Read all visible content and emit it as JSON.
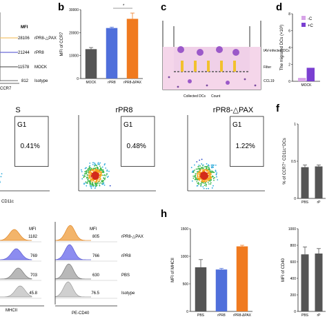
{
  "panel_letters": [
    "b",
    "c",
    "d",
    "f",
    "h"
  ],
  "panel_a": {
    "mfi_label": "MFI",
    "rows": [
      {
        "value": "28106",
        "label": "rPR8-△PAX",
        "color": "#f3c46e"
      },
      {
        "value": "21244",
        "label": "rPR8",
        "color": "#6b6bd8"
      },
      {
        "value": "11578",
        "label": "MOCK",
        "color": "#555555"
      },
      {
        "value": "812",
        "label": "Isotype",
        "color": "#999999"
      }
    ],
    "axis_label": "CCR7"
  },
  "panel_b": {
    "letter": "b",
    "significance": "*"
  },
  "panel_c": {
    "letter": "c",
    "labels": {
      "infected": "IAV-infected DCs",
      "filter": "Filter",
      "ccl19": "CCL19",
      "collected": "Collected DCs",
      "count": "Count"
    }
  },
  "panel_d": {
    "letter": "d",
    "legend": [
      "-C",
      "+C"
    ],
    "category": "MOCK"
  },
  "panel_e": {
    "plots": [
      {
        "title": "S",
        "gate": "G1",
        "percent": "0.41%"
      },
      {
        "title": "rPR8",
        "gate": "G1",
        "percent": "0.48%"
      },
      {
        "title": "rPR8-△PAX",
        "gate": "G1",
        "percent": "1.22%"
      }
    ],
    "xlabel": "CD11c"
  },
  "panel_f": {
    "letter": "f",
    "categories": [
      "PBS",
      "rP"
    ]
  },
  "panel_g": {
    "left": {
      "mfi_label": "MFI",
      "values": [
        "1182",
        "769",
        "703",
        "45.8"
      ],
      "axis_label": "MHCII"
    },
    "right": {
      "mfi_label": "MFI",
      "values": [
        "805",
        "766",
        "630",
        "76.5"
      ],
      "labels": [
        "rPR8-△PAX",
        "rPR8",
        "PBS",
        "Isotype"
      ],
      "axis_label": "PE-CD40"
    }
  },
  "panel_h": {
    "letter": "h",
    "significance": "**"
  },
  "chart_data": [
    {
      "type": "bar",
      "categories": [
        "MOCK",
        "rPR8",
        "rPR8-ΔPAX"
      ],
      "values": [
        12800,
        22000,
        26000
      ],
      "errors": [
        700,
        400,
        2500
      ],
      "colors": [
        "#555555",
        "#4f6fdb",
        "#f07a1f"
      ],
      "ylabel": "MFI of CCR7",
      "ylim": [
        0,
        30000
      ],
      "yticks": [
        0,
        10000,
        20000,
        30000
      ]
    },
    {
      "type": "bar",
      "categories": [
        "MOCK"
      ],
      "series": [
        {
          "name": "-C",
          "values": [
            0.4
          ],
          "color": "#d7a3e8"
        },
        {
          "name": "+C",
          "values": [
            1.6
          ],
          "color": "#7a3fd1"
        }
      ],
      "ylabel": "The migrated DCs (×10³)",
      "yticks": [
        0,
        2,
        4,
        6,
        8
      ],
      "ylim": [
        0,
        8
      ]
    },
    {
      "type": "bar",
      "categories": [
        "PBS",
        "rP"
      ],
      "values": [
        0.42,
        0.43
      ],
      "errors": [
        0.03,
        0.02
      ],
      "color": "#555555",
      "ylabel": "% of CCR7⁺ CD11c⁺DCs",
      "ylim": [
        0,
        1.0
      ],
      "yticks": [
        0.0,
        0.5,
        1.0
      ]
    },
    {
      "type": "bar",
      "categories": [
        "PBS",
        "rPR8",
        "rPR8-ΔPAX"
      ],
      "values": [
        800,
        760,
        1180
      ],
      "errors": [
        140,
        20,
        20
      ],
      "colors": [
        "#555555",
        "#4f6fdb",
        "#f07a1f"
      ],
      "ylabel": "MFI of MHCII",
      "ylim": [
        0,
        1500
      ],
      "yticks": [
        0,
        500,
        1000,
        1500
      ]
    },
    {
      "type": "bar",
      "categories": [
        "PBS",
        "rP"
      ],
      "values": [
        690,
        700
      ],
      "errors": [
        90,
        60
      ],
      "color": "#555555",
      "ylabel": "MFI of CD40",
      "ylim": [
        0,
        1000
      ],
      "yticks": [
        0,
        200,
        400,
        600,
        800,
        1000
      ]
    }
  ]
}
